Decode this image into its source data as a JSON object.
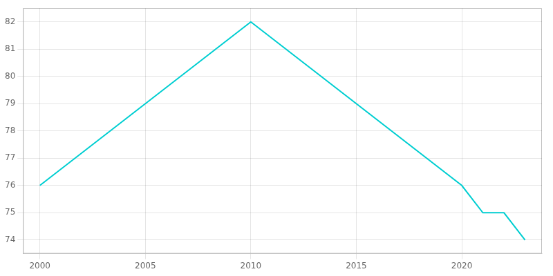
{
  "chart_data": {
    "type": "line",
    "x": [
      2000,
      2010,
      2020,
      2021,
      2022,
      2023
    ],
    "values": [
      76,
      82,
      76,
      75,
      75,
      74
    ],
    "color": "#00CED1",
    "xlim": [
      1999.2,
      2023.8
    ],
    "ylim": [
      73.5,
      82.5
    ],
    "xticks": [
      2000,
      2005,
      2010,
      2015,
      2020
    ],
    "yticks": [
      74,
      75,
      76,
      77,
      78,
      79,
      80,
      81,
      82
    ],
    "grid": true
  }
}
